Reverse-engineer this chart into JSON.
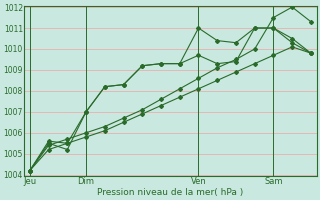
{
  "title": "",
  "xlabel": "Pression niveau de la mer( hPa )",
  "ylim": [
    1004,
    1012
  ],
  "yticks": [
    1004,
    1005,
    1006,
    1007,
    1008,
    1009,
    1010,
    1011,
    1012
  ],
  "background_color": "#c8e8e0",
  "grid_color_h": "#e8b0b0",
  "grid_color_v": "#c0d8d0",
  "line_color": "#2a6b2a",
  "text_color": "#2a6b2a",
  "spine_color": "#2a6b2a",
  "xtick_labels": [
    "Jeu",
    "Dim",
    "Ven",
    "Sam"
  ],
  "xtick_positions": [
    0,
    3,
    9,
    13
  ],
  "total_points": 16,
  "xlim": [
    -0.3,
    15.3
  ],
  "line1": [
    1004.2,
    1005.5,
    1005.2,
    1007.0,
    1008.2,
    1008.3,
    1009.2,
    1009.3,
    1009.3,
    1009.7,
    1009.3,
    1009.4,
    1011.0,
    1011.0,
    1010.3,
    1009.8
  ],
  "line2": [
    1004.2,
    1005.6,
    1005.5,
    1007.0,
    1008.2,
    1008.3,
    1009.2,
    1009.3,
    1009.3,
    1011.0,
    1010.4,
    1010.3,
    1011.0,
    1011.0,
    1010.5,
    1009.8
  ],
  "line3": [
    1004.2,
    1005.2,
    1005.5,
    1005.8,
    1006.1,
    1006.5,
    1006.9,
    1007.3,
    1007.7,
    1008.1,
    1008.5,
    1008.9,
    1009.3,
    1009.7,
    1010.1,
    1009.8
  ],
  "line4": [
    1004.2,
    1005.4,
    1005.7,
    1006.0,
    1006.3,
    1006.7,
    1007.1,
    1007.6,
    1008.1,
    1008.6,
    1009.1,
    1009.5,
    1010.0,
    1011.5,
    1012.0,
    1011.3
  ]
}
